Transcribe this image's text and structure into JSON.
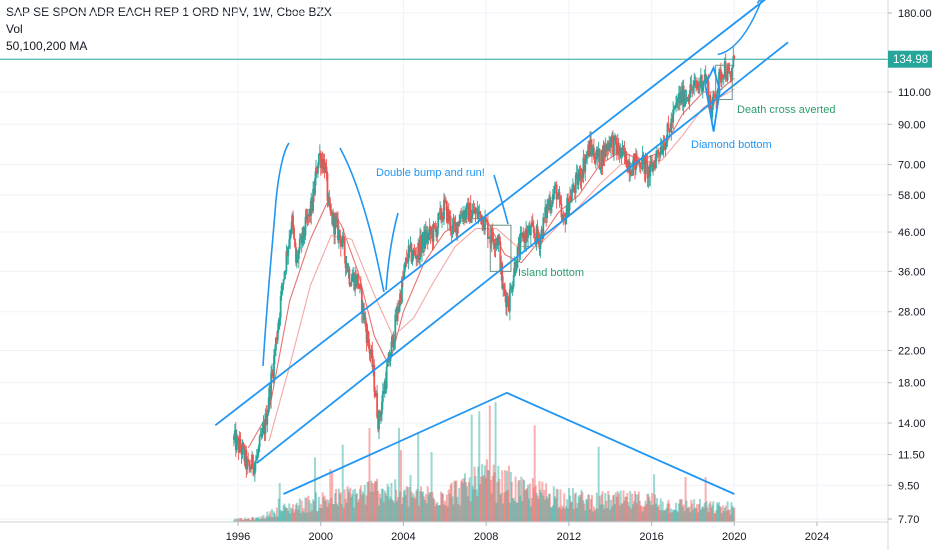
{
  "legend": {
    "symbol_line": "SAP SE SPON ADR EACH REP 1 ORD NPV, 1W, Cboe BZX",
    "volume_label": "Vol",
    "ma_label": "50,100,200 MA"
  },
  "price_badge": "134.98",
  "colors": {
    "up": "#26a69a",
    "down": "#ef5350",
    "drawing": "#2196f3",
    "annotation_green": "#2e9e6b",
    "ma_fast": "#e57373",
    "ma_slow": "#f4a7a7",
    "grid": "#f0f3fa",
    "last_price_line": "#26a69a"
  },
  "annotations": {
    "double_bump": "Double bump and run!",
    "island_bottom": "Island bottom",
    "diamond_bottom": "Diamond bottom",
    "death_cross": "Death cross averted"
  },
  "chart_data": {
    "type": "candlestick",
    "title": "SAP SE SPON ADR EACH REP 1 ORD NPV, 1W, Cboe BZX",
    "scale": "log",
    "y_ticks": [
      7.7,
      9.5,
      11.5,
      14,
      18,
      22,
      28,
      36,
      46,
      58,
      70,
      90,
      110,
      180
    ],
    "x_ticks": [
      "1996",
      "2000",
      "2004",
      "2008",
      "2012",
      "2016",
      "2020",
      "2024"
    ],
    "ylim": [
      7.2,
      210
    ],
    "xlim": [
      1994.8,
      2027.8
    ],
    "last_price": 134.98,
    "indicators": [
      "Vol",
      "50,100,200 MA"
    ],
    "price_path": [
      [
        1995.8,
        12.6
      ],
      [
        1996.2,
        11.8
      ],
      [
        1996.5,
        10.5
      ],
      [
        1996.9,
        11.2
      ],
      [
        1997.3,
        13.8
      ],
      [
        1997.7,
        20
      ],
      [
        1998.2,
        35
      ],
      [
        1998.6,
        50
      ],
      [
        1998.8,
        38
      ],
      [
        1999.2,
        46
      ],
      [
        1999.6,
        55
      ],
      [
        1999.9,
        75
      ],
      [
        2000.2,
        70
      ],
      [
        2000.4,
        52
      ],
      [
        2000.7,
        48
      ],
      [
        2001.0,
        44
      ],
      [
        2001.4,
        35
      ],
      [
        2001.8,
        34
      ],
      [
        2002.1,
        27
      ],
      [
        2002.5,
        20
      ],
      [
        2002.8,
        14
      ],
      [
        2003.1,
        18
      ],
      [
        2003.4,
        22
      ],
      [
        2003.8,
        30
      ],
      [
        2004.2,
        40
      ],
      [
        2004.6,
        40
      ],
      [
        2005.0,
        44
      ],
      [
        2005.5,
        46
      ],
      [
        2006.0,
        54
      ],
      [
        2006.4,
        46
      ],
      [
        2006.8,
        52
      ],
      [
        2007.3,
        52
      ],
      [
        2007.8,
        51
      ],
      [
        2008.2,
        45
      ],
      [
        2008.6,
        44
      ],
      [
        2008.8,
        32
      ],
      [
        2009.1,
        30
      ],
      [
        2009.4,
        38
      ],
      [
        2009.8,
        45
      ],
      [
        2010.2,
        46
      ],
      [
        2010.6,
        44
      ],
      [
        2011.0,
        55
      ],
      [
        2011.4,
        60
      ],
      [
        2011.7,
        48
      ],
      [
        2012.0,
        56
      ],
      [
        2012.5,
        65
      ],
      [
        2013.0,
        78
      ],
      [
        2013.5,
        72
      ],
      [
        2014.0,
        82
      ],
      [
        2014.5,
        75
      ],
      [
        2015.0,
        70
      ],
      [
        2015.5,
        72
      ],
      [
        2015.9,
        66
      ],
      [
        2016.3,
        76
      ],
      [
        2016.8,
        85
      ],
      [
        2017.3,
        105
      ],
      [
        2017.8,
        110
      ],
      [
        2018.2,
        114
      ],
      [
        2018.6,
        122
      ],
      [
        2018.9,
        98
      ],
      [
        2019.2,
        115
      ],
      [
        2019.5,
        130
      ],
      [
        2019.8,
        118
      ],
      [
        2020.0,
        134.98
      ]
    ],
    "moving_averages": [
      {
        "name": "fast",
        "points": [
          [
            1996.5,
            12
          ],
          [
            1997.5,
            15
          ],
          [
            1998.5,
            30
          ],
          [
            1999.5,
            44
          ],
          [
            2000.3,
            55
          ],
          [
            2001.0,
            48
          ],
          [
            2001.8,
            36
          ],
          [
            2002.6,
            24
          ],
          [
            2003.3,
            20
          ],
          [
            2004.0,
            28
          ],
          [
            2005.0,
            38
          ],
          [
            2006.0,
            46
          ],
          [
            2007.0,
            50
          ],
          [
            2008.0,
            50
          ],
          [
            2008.9,
            40
          ],
          [
            2009.7,
            38
          ],
          [
            2010.5,
            43
          ],
          [
            2011.5,
            52
          ],
          [
            2012.5,
            58
          ],
          [
            2013.5,
            70
          ],
          [
            2014.5,
            76
          ],
          [
            2015.5,
            72
          ],
          [
            2016.5,
            76
          ],
          [
            2017.5,
            96
          ],
          [
            2018.5,
            110
          ],
          [
            2019.2,
            110
          ],
          [
            2020.0,
            120
          ]
        ]
      },
      {
        "name": "slow",
        "points": [
          [
            1997.5,
            12.5
          ],
          [
            1998.5,
            20
          ],
          [
            1999.5,
            33
          ],
          [
            2000.5,
            45
          ],
          [
            2001.5,
            44
          ],
          [
            2002.5,
            32
          ],
          [
            2003.5,
            24
          ],
          [
            2004.5,
            27
          ],
          [
            2005.5,
            34
          ],
          [
            2006.5,
            42
          ],
          [
            2007.5,
            47
          ],
          [
            2008.5,
            47
          ],
          [
            2009.5,
            42
          ],
          [
            2010.5,
            42
          ],
          [
            2011.5,
            48
          ],
          [
            2012.5,
            54
          ],
          [
            2013.5,
            62
          ],
          [
            2014.5,
            70
          ],
          [
            2015.5,
            71
          ],
          [
            2016.5,
            72
          ],
          [
            2017.5,
            84
          ],
          [
            2018.5,
            100
          ],
          [
            2019.5,
            108
          ],
          [
            2020.0,
            112
          ]
        ]
      }
    ],
    "volume_path": [
      [
        1995.8,
        0.05
      ],
      [
        1997.0,
        0.08
      ],
      [
        1998.0,
        0.25
      ],
      [
        1999.0,
        0.35
      ],
      [
        2000.0,
        0.45
      ],
      [
        2001.0,
        0.5
      ],
      [
        2002.0,
        0.6
      ],
      [
        2003.0,
        0.7
      ],
      [
        2004.0,
        0.55
      ],
      [
        2005.0,
        0.55
      ],
      [
        2006.0,
        0.6
      ],
      [
        2007.0,
        0.7
      ],
      [
        2008.0,
        0.9
      ],
      [
        2009.0,
        0.75
      ],
      [
        2010.0,
        0.6
      ],
      [
        2011.0,
        0.6
      ],
      [
        2012.0,
        0.5
      ],
      [
        2013.0,
        0.45
      ],
      [
        2014.0,
        0.45
      ],
      [
        2015.0,
        0.45
      ],
      [
        2016.0,
        0.45
      ],
      [
        2017.0,
        0.35
      ],
      [
        2018.0,
        0.35
      ],
      [
        2019.0,
        0.3
      ],
      [
        2020.0,
        0.3
      ]
    ],
    "drawings": {
      "channel_upper": [
        [
          1994.9,
          13.8
        ],
        [
          2022.1,
          208
        ]
      ],
      "channel_lower": [
        [
          1996.9,
          10.9
        ],
        [
          2022.6,
          150
        ]
      ],
      "forecast_arrow": [
        [
          2019.2,
          139
        ],
        [
          2021.4,
          200
        ]
      ],
      "volume_triangle": [
        [
          1998.2,
          9.0
        ],
        [
          2009.0,
          16.9
        ],
        [
          2020.0,
          9.0
        ]
      ],
      "diamond": [
        [
          2018.6,
          115
        ],
        [
          2019.0,
          128
        ],
        [
          2019.3,
          111
        ],
        [
          2019.0,
          86
        ]
      ],
      "rect_death_cross": [
        [
          2019.1,
          130
        ],
        [
          2019.9,
          105
        ]
      ],
      "rect_island": [
        [
          2008.2,
          48
        ],
        [
          2009.2,
          36
        ]
      ]
    }
  }
}
